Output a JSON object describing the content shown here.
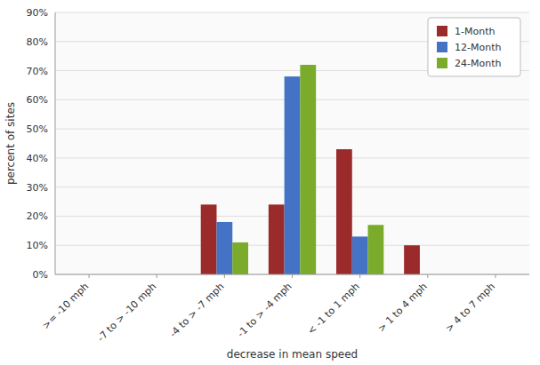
{
  "chart_data": {
    "type": "bar",
    "categories": [
      ">= -10 mph",
      "-7 to > -10 mph",
      "-4 to > -7 mph",
      "-1 to > -4 mph",
      "< -1 to 1 mph",
      "> 1 to 4 mph",
      "> 4 to 7 mph"
    ],
    "series": [
      {
        "name": "1-Month",
        "color": "#9B2B2B",
        "values": [
          0,
          0,
          24,
          24,
          43,
          10,
          0
        ]
      },
      {
        "name": "12-Month",
        "color": "#4472C4",
        "values": [
          0,
          0,
          18,
          68,
          13,
          0,
          0
        ]
      },
      {
        "name": "24-Month",
        "color": "#7AAB2A",
        "values": [
          0,
          0,
          11,
          72,
          17,
          0,
          0
        ]
      }
    ],
    "xlabel": "decrease in mean speed",
    "ylabel": "percent of sites",
    "ylim": [
      0,
      90
    ],
    "yticks": [
      {
        "value": 0,
        "label": "0%"
      },
      {
        "value": 10,
        "label": "10%"
      },
      {
        "value": 20,
        "label": "20%"
      },
      {
        "value": 30,
        "label": "30%"
      },
      {
        "value": 40,
        "label": "40%"
      },
      {
        "value": 50,
        "label": "50%"
      },
      {
        "value": 60,
        "label": "60%"
      },
      {
        "value": 70,
        "label": "70%"
      },
      {
        "value": 80,
        "label": "80%"
      },
      {
        "value": 90,
        "label": "90%"
      }
    ],
    "grid": true,
    "legend": "upper-right"
  }
}
